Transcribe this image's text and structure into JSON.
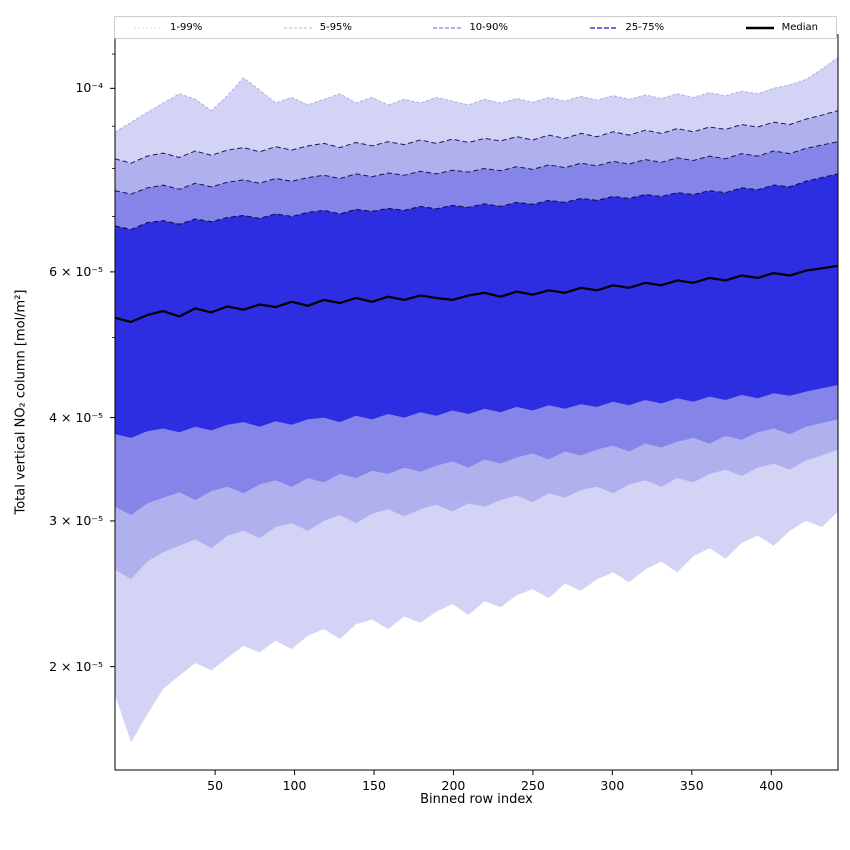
{
  "figure": {
    "background": "#ffffff"
  },
  "axes": {
    "xlabel": "Binned row index",
    "ylabel": "Total vertical NO₂ column [mol/m²]",
    "xlim": [
      -13,
      442
    ],
    "ylim": [
      1.5e-05,
      0.000116
    ],
    "yscale": "log",
    "x_ticks": [
      {
        "value": 50,
        "label": "50"
      },
      {
        "value": 100,
        "label": "100"
      },
      {
        "value": 150,
        "label": "150"
      },
      {
        "value": 200,
        "label": "200"
      },
      {
        "value": 250,
        "label": "250"
      },
      {
        "value": 300,
        "label": "300"
      },
      {
        "value": 350,
        "label": "350"
      },
      {
        "value": 400,
        "label": "400"
      }
    ],
    "y_ticks": [
      {
        "value": 0.0001,
        "label": "10⁻⁴"
      },
      {
        "value": 6e-05,
        "label": "6 × 10⁻⁵"
      },
      {
        "value": 4e-05,
        "label": "4 × 10⁻⁵"
      },
      {
        "value": 3e-05,
        "label": "3 × 10⁻⁵"
      },
      {
        "value": 2e-05,
        "label": "2 × 10⁻⁵"
      }
    ],
    "y_minor_ticks": [
      5e-05,
      7e-05,
      8e-05,
      9e-05,
      0.00011
    ],
    "spine_color": "#000000"
  },
  "legend": {
    "entries": [
      {
        "label": "1-99%",
        "color": "#dedef6",
        "dash": "2 2",
        "width": 1
      },
      {
        "label": "5-95%",
        "color": "#b6b6ef",
        "dash": "3 2",
        "width": 1
      },
      {
        "label": "10-90%",
        "color": "#8080e8",
        "dash": "4 2",
        "width": 1.2
      },
      {
        "label": "25-75%",
        "color": "#3a3ad8",
        "dash": "5 2",
        "width": 1.6
      },
      {
        "label": "Median",
        "color": "#000000",
        "dash": "",
        "width": 2.6
      }
    ]
  },
  "chart_data": {
    "type": "area",
    "title": "",
    "xlabel": "Binned row index",
    "ylabel": "Total vertical NO₂ column [mol/m²]",
    "x": {
      "start": -13,
      "end": 442,
      "count": 46
    },
    "value_scale": 1e-05,
    "series": [
      {
        "name": "p1",
        "values": [
          1.85,
          1.62,
          1.75,
          1.88,
          1.95,
          2.02,
          1.98,
          2.05,
          2.12,
          2.08,
          2.15,
          2.1,
          2.18,
          2.22,
          2.16,
          2.25,
          2.28,
          2.22,
          2.3,
          2.26,
          2.33,
          2.38,
          2.31,
          2.4,
          2.36,
          2.44,
          2.48,
          2.42,
          2.52,
          2.47,
          2.55,
          2.6,
          2.53,
          2.62,
          2.68,
          2.6,
          2.72,
          2.78,
          2.7,
          2.82,
          2.88,
          2.8,
          2.92,
          3.0,
          2.95,
          3.08
        ]
      },
      {
        "name": "p5",
        "values": [
          2.62,
          2.55,
          2.68,
          2.75,
          2.8,
          2.85,
          2.78,
          2.88,
          2.92,
          2.86,
          2.95,
          2.98,
          2.92,
          3.0,
          3.05,
          2.98,
          3.06,
          3.1,
          3.04,
          3.1,
          3.14,
          3.08,
          3.15,
          3.12,
          3.18,
          3.22,
          3.16,
          3.24,
          3.2,
          3.27,
          3.3,
          3.24,
          3.32,
          3.36,
          3.3,
          3.38,
          3.34,
          3.42,
          3.46,
          3.4,
          3.48,
          3.52,
          3.46,
          3.55,
          3.6,
          3.66
        ]
      },
      {
        "name": "p10",
        "values": [
          3.12,
          3.05,
          3.15,
          3.2,
          3.25,
          3.18,
          3.26,
          3.3,
          3.24,
          3.32,
          3.36,
          3.3,
          3.38,
          3.34,
          3.42,
          3.38,
          3.45,
          3.42,
          3.48,
          3.44,
          3.5,
          3.54,
          3.48,
          3.56,
          3.52,
          3.58,
          3.62,
          3.56,
          3.64,
          3.6,
          3.66,
          3.7,
          3.64,
          3.72,
          3.68,
          3.74,
          3.78,
          3.72,
          3.8,
          3.76,
          3.84,
          3.88,
          3.82,
          3.9,
          3.94,
          3.98
        ]
      },
      {
        "name": "p25",
        "values": [
          3.82,
          3.78,
          3.85,
          3.88,
          3.84,
          3.9,
          3.86,
          3.92,
          3.95,
          3.9,
          3.96,
          3.92,
          3.98,
          4.0,
          3.95,
          4.02,
          3.98,
          4.04,
          4.0,
          4.06,
          4.02,
          4.08,
          4.04,
          4.1,
          4.06,
          4.12,
          4.08,
          4.14,
          4.1,
          4.15,
          4.12,
          4.18,
          4.14,
          4.2,
          4.16,
          4.22,
          4.18,
          4.24,
          4.2,
          4.26,
          4.22,
          4.28,
          4.25,
          4.3,
          4.34,
          4.38
        ]
      },
      {
        "name": "median",
        "values": [
          5.28,
          5.22,
          5.32,
          5.38,
          5.3,
          5.42,
          5.36,
          5.45,
          5.4,
          5.48,
          5.44,
          5.52,
          5.46,
          5.55,
          5.5,
          5.58,
          5.52,
          5.6,
          5.55,
          5.62,
          5.58,
          5.55,
          5.62,
          5.66,
          5.6,
          5.68,
          5.63,
          5.7,
          5.66,
          5.74,
          5.7,
          5.78,
          5.74,
          5.82,
          5.78,
          5.86,
          5.82,
          5.9,
          5.86,
          5.94,
          5.9,
          5.98,
          5.94,
          6.02,
          6.06,
          6.1
        ]
      },
      {
        "name": "p75",
        "values": [
          6.82,
          6.75,
          6.88,
          6.92,
          6.85,
          6.95,
          6.9,
          6.98,
          7.02,
          6.96,
          7.05,
          7.0,
          7.08,
          7.12,
          7.05,
          7.14,
          7.1,
          7.16,
          7.12,
          7.2,
          7.15,
          7.22,
          7.18,
          7.25,
          7.2,
          7.28,
          7.24,
          7.32,
          7.28,
          7.36,
          7.32,
          7.4,
          7.36,
          7.44,
          7.4,
          7.48,
          7.44,
          7.52,
          7.48,
          7.58,
          7.54,
          7.64,
          7.6,
          7.72,
          7.8,
          7.88
        ]
      },
      {
        "name": "p90",
        "values": [
          7.52,
          7.45,
          7.58,
          7.64,
          7.55,
          7.68,
          7.6,
          7.7,
          7.75,
          7.68,
          7.78,
          7.72,
          7.8,
          7.85,
          7.78,
          7.88,
          7.82,
          7.9,
          7.85,
          7.94,
          7.88,
          7.96,
          7.92,
          8.0,
          7.95,
          8.04,
          7.98,
          8.08,
          8.02,
          8.12,
          8.06,
          8.16,
          8.1,
          8.2,
          8.14,
          8.24,
          8.18,
          8.28,
          8.22,
          8.34,
          8.28,
          8.4,
          8.34,
          8.46,
          8.54,
          8.62
        ]
      },
      {
        "name": "p95",
        "values": [
          8.22,
          8.12,
          8.28,
          8.35,
          8.25,
          8.4,
          8.3,
          8.42,
          8.48,
          8.38,
          8.5,
          8.42,
          8.52,
          8.58,
          8.48,
          8.6,
          8.52,
          8.62,
          8.55,
          8.66,
          8.58,
          8.68,
          8.6,
          8.7,
          8.64,
          8.74,
          8.66,
          8.78,
          8.7,
          8.82,
          8.74,
          8.86,
          8.78,
          8.9,
          8.82,
          8.94,
          8.86,
          8.98,
          8.92,
          9.04,
          8.98,
          9.1,
          9.04,
          9.18,
          9.28,
          9.4
        ]
      },
      {
        "name": "p99",
        "values": [
          8.85,
          9.1,
          9.35,
          9.6,
          9.85,
          9.7,
          9.4,
          9.8,
          10.3,
          9.95,
          9.6,
          9.75,
          9.55,
          9.7,
          9.85,
          9.6,
          9.75,
          9.55,
          9.7,
          9.6,
          9.75,
          9.65,
          9.55,
          9.7,
          9.6,
          9.72,
          9.62,
          9.75,
          9.65,
          9.78,
          9.68,
          9.8,
          9.7,
          9.82,
          9.72,
          9.85,
          9.75,
          9.88,
          9.8,
          9.92,
          9.85,
          10.0,
          10.1,
          10.25,
          10.55,
          10.9
        ]
      }
    ],
    "bands": [
      {
        "name": "band-1-99",
        "lower": "p1",
        "upper": "p99",
        "fill": "#d3d3f5"
      },
      {
        "name": "band-5-95",
        "lower": "p5",
        "upper": "p95",
        "fill": "#b0b0ef"
      },
      {
        "name": "band-10-90",
        "lower": "p10",
        "upper": "p90",
        "fill": "#8484e9"
      },
      {
        "name": "band-25-75",
        "lower": "p25",
        "upper": "p75",
        "fill": "#2d2de2"
      }
    ],
    "edge_lines": [
      {
        "series": "p99",
        "color": "#a9a9ec",
        "dash": "3 2",
        "width": 0.9
      },
      {
        "series": "p95",
        "color": "#1c1c5a",
        "dash": "5 3",
        "width": 1
      },
      {
        "series": "p90",
        "color": "#16164f",
        "dash": "5 3",
        "width": 1
      },
      {
        "series": "p75",
        "color": "#101045",
        "dash": "5 3",
        "width": 1.1
      }
    ],
    "median_line": {
      "series": "median",
      "color": "#000000",
      "width": 2.2
    }
  }
}
